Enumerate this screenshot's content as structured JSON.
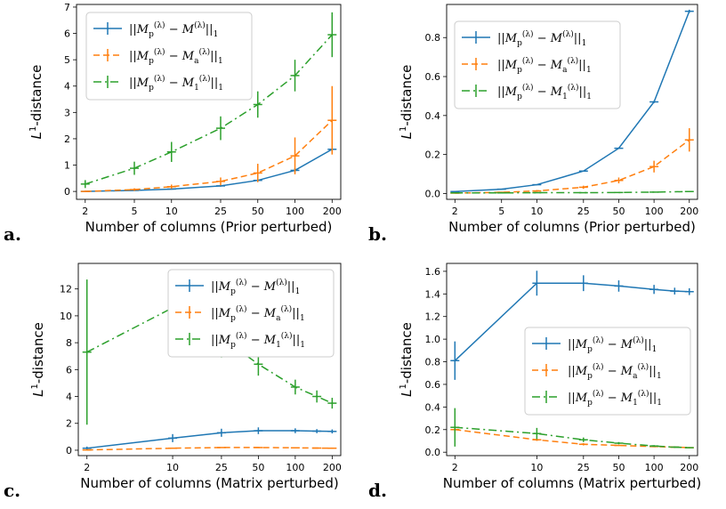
{
  "chart_data": [
    {
      "type": "line",
      "panel_label": "a.",
      "xlabel": "Number of columns (Prior perturbed)",
      "ylabel": "L¹-distance",
      "x_scale": "log",
      "x_ticks": [
        2,
        5,
        10,
        25,
        50,
        100,
        200
      ],
      "x_tick_labels": [
        "2",
        "5",
        "10",
        "25",
        "50",
        "100",
        "200"
      ],
      "y_ticks": [
        0,
        1,
        2,
        3,
        4,
        5,
        6,
        7
      ],
      "y_tick_labels": [
        "0",
        "1",
        "2",
        "3",
        "4",
        "5",
        "6",
        "7"
      ],
      "xlim": [
        1.7,
        235
      ],
      "ylim": [
        -0.3,
        7.1
      ],
      "legend_position": "upper-left",
      "series": [
        {
          "name": "||M_p^(λ) − M^(λ)||₁",
          "color": "#1f77b4",
          "style": "solid",
          "x": [
            2,
            5,
            10,
            25,
            50,
            100,
            200
          ],
          "y": [
            0.0,
            0.04,
            0.09,
            0.21,
            0.42,
            0.8,
            1.6
          ],
          "err": [
            0.02,
            0.02,
            0.02,
            0.03,
            0.05,
            0.08,
            0.1
          ]
        },
        {
          "name": "||M_p^(λ) − M_a^(λ)||₁",
          "color": "#ff7f0e",
          "style": "dashed",
          "x": [
            2,
            5,
            10,
            25,
            50,
            100,
            200
          ],
          "y": [
            0.0,
            0.07,
            0.18,
            0.38,
            0.7,
            1.35,
            2.7
          ],
          "err": [
            0.03,
            0.05,
            0.08,
            0.15,
            0.35,
            0.7,
            1.3
          ]
        },
        {
          "name": "||M_p^(λ) − M_1^(λ)||₁",
          "color": "#2ca02c",
          "style": "dashdot",
          "x": [
            2,
            5,
            10,
            25,
            50,
            100,
            200
          ],
          "y": [
            0.28,
            0.88,
            1.5,
            2.4,
            3.3,
            4.4,
            5.95
          ],
          "err": [
            0.15,
            0.25,
            0.38,
            0.45,
            0.5,
            0.6,
            0.85
          ]
        }
      ]
    },
    {
      "type": "line",
      "panel_label": "b.",
      "xlabel": "Number of columns (Prior perturbed)",
      "ylabel": "L¹-distance",
      "x_scale": "log",
      "x_ticks": [
        2,
        5,
        10,
        25,
        50,
        100,
        200
      ],
      "x_tick_labels": [
        "2",
        "5",
        "10",
        "25",
        "50",
        "100",
        "200"
      ],
      "y_ticks": [
        0.0,
        0.2,
        0.4,
        0.6,
        0.8
      ],
      "y_tick_labels": [
        "0.0",
        "0.2",
        "0.4",
        "0.6",
        "0.8"
      ],
      "xlim": [
        1.7,
        235
      ],
      "ylim": [
        -0.03,
        0.97
      ],
      "legend_position": "upper-left",
      "series": [
        {
          "name": "||M_p^(λ) − M^(λ)||₁",
          "color": "#1f77b4",
          "style": "solid",
          "x": [
            2,
            5,
            10,
            25,
            50,
            100,
            200
          ],
          "y": [
            0.01,
            0.022,
            0.045,
            0.115,
            0.232,
            0.47,
            0.935
          ],
          "err": [
            0.001,
            0.001,
            0.002,
            0.003,
            0.004,
            0.006,
            0.008
          ]
        },
        {
          "name": "||M_p^(λ) − M_a^(λ)||₁",
          "color": "#ff7f0e",
          "style": "dashed",
          "x": [
            2,
            5,
            10,
            25,
            50,
            100,
            200
          ],
          "y": [
            0.002,
            0.006,
            0.013,
            0.032,
            0.067,
            0.138,
            0.275
          ],
          "err": [
            0.002,
            0.003,
            0.005,
            0.008,
            0.015,
            0.03,
            0.06
          ]
        },
        {
          "name": "||M_p^(λ) − M_1^(λ)||₁",
          "color": "#2ca02c",
          "style": "dashdot",
          "x": [
            2,
            5,
            10,
            25,
            50,
            100,
            200
          ],
          "y": [
            0.003,
            0.003,
            0.004,
            0.004,
            0.005,
            0.007,
            0.01
          ],
          "err": [
            0.001,
            0.001,
            0.001,
            0.001,
            0.001,
            0.001,
            0.002
          ]
        }
      ]
    },
    {
      "type": "line",
      "panel_label": "c.",
      "xlabel": "Number of columns (Matrix perturbed)",
      "ylabel": "L¹-distance",
      "x_scale": "log",
      "x_ticks": [
        2,
        10,
        25,
        50,
        100,
        200
      ],
      "x_tick_labels": [
        "2",
        "10",
        "25",
        "50",
        "100",
        "200"
      ],
      "y_ticks": [
        0,
        2,
        4,
        6,
        8,
        10,
        12
      ],
      "y_tick_labels": [
        "0",
        "2",
        "4",
        "6",
        "8",
        "10",
        "12"
      ],
      "xlim": [
        1.7,
        235
      ],
      "ylim": [
        -0.4,
        13.9
      ],
      "legend_position": "upper-right",
      "series": [
        {
          "name": "||M_p^(λ) − M^(λ)||₁",
          "color": "#1f77b4",
          "style": "solid",
          "x": [
            2,
            10,
            25,
            50,
            100,
            150,
            200
          ],
          "y": [
            0.15,
            0.9,
            1.3,
            1.45,
            1.45,
            1.42,
            1.4
          ],
          "err": [
            0.12,
            0.3,
            0.3,
            0.25,
            0.18,
            0.15,
            0.15
          ]
        },
        {
          "name": "||M_p^(λ) − M_a^(λ)||₁",
          "color": "#ff7f0e",
          "style": "dashed",
          "x": [
            2,
            10,
            25,
            50,
            100,
            150,
            200
          ],
          "y": [
            0.02,
            0.15,
            0.2,
            0.2,
            0.18,
            0.16,
            0.15
          ],
          "err": [
            0.02,
            0.03,
            0.03,
            0.03,
            0.03,
            0.02,
            0.02
          ]
        },
        {
          "name": "||M_p^(λ) − M_1^(λ)||₁",
          "color": "#2ca02c",
          "style": "dashdot",
          "x": [
            2,
            10,
            25,
            50,
            100,
            150,
            200
          ],
          "y": [
            7.3,
            10.6,
            8.4,
            6.4,
            4.7,
            4.0,
            3.5
          ],
          "err": [
            5.4,
            2.6,
            1.5,
            0.85,
            0.55,
            0.45,
            0.4
          ]
        }
      ]
    },
    {
      "type": "line",
      "panel_label": "d.",
      "xlabel": "Number of columns (Matrix perturbed)",
      "ylabel": "L¹-distance",
      "x_scale": "log",
      "x_ticks": [
        2,
        10,
        25,
        50,
        100,
        200
      ],
      "x_tick_labels": [
        "2",
        "10",
        "25",
        "50",
        "100",
        "200"
      ],
      "y_ticks": [
        0.0,
        0.2,
        0.4,
        0.6,
        0.8,
        1.0,
        1.2,
        1.4,
        1.6
      ],
      "y_tick_labels": [
        "0.0",
        "0.2",
        "0.4",
        "0.6",
        "0.8",
        "1.0",
        "1.2",
        "1.4",
        "1.6"
      ],
      "xlim": [
        1.7,
        235
      ],
      "ylim": [
        -0.03,
        1.67
      ],
      "legend_position": "center-right",
      "series": [
        {
          "name": "||M_p^(λ) − M^(λ)||₁",
          "color": "#1f77b4",
          "style": "solid",
          "x": [
            2,
            10,
            25,
            50,
            100,
            150,
            200
          ],
          "y": [
            0.81,
            1.495,
            1.495,
            1.47,
            1.44,
            1.425,
            1.42
          ],
          "err": [
            0.17,
            0.11,
            0.07,
            0.05,
            0.04,
            0.03,
            0.03
          ]
        },
        {
          "name": "||M_p^(λ) − M_a^(λ)||₁",
          "color": "#ff7f0e",
          "style": "dashed",
          "x": [
            2,
            10,
            25,
            50,
            100,
            150,
            200
          ],
          "y": [
            0.2,
            0.11,
            0.07,
            0.06,
            0.05,
            0.045,
            0.04
          ],
          "err": [
            0.02,
            0.01,
            0.01,
            0.005,
            0.005,
            0.005,
            0.005
          ]
        },
        {
          "name": "||M_p^(λ) − M_1^(λ)||₁",
          "color": "#2ca02c",
          "style": "dashdot",
          "x": [
            2,
            10,
            25,
            50,
            100,
            150,
            200
          ],
          "y": [
            0.22,
            0.165,
            0.11,
            0.08,
            0.055,
            0.045,
            0.04
          ],
          "err": [
            0.17,
            0.05,
            0.02,
            0.01,
            0.008,
            0.006,
            0.005
          ]
        }
      ]
    }
  ]
}
